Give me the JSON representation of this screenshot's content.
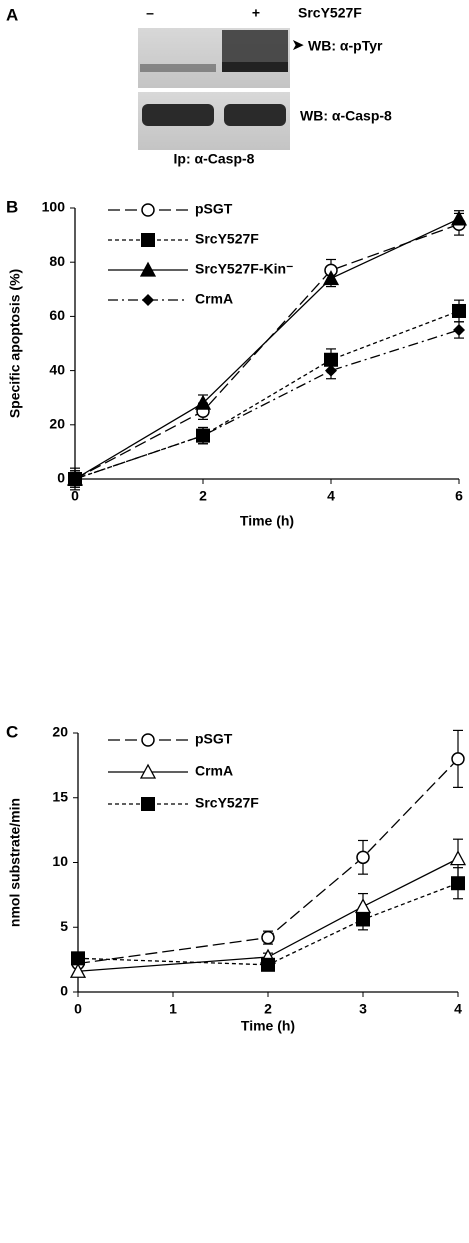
{
  "blot": {
    "panel_label": "A",
    "lane_labels": [
      "–",
      "+"
    ],
    "condition": "SrcY527F",
    "band_labels": [
      "WB: α-pTyr",
      "WB: α-Casp-8"
    ],
    "arrow": "➤",
    "ip_label": "Ip: α-Casp-8"
  },
  "chart_data": [
    {
      "type": "line",
      "panel_label": "B",
      "x_label": "Time (h)",
      "y_label": "Specific apoptosis (%)",
      "x": [
        0,
        2,
        4,
        6
      ],
      "xlim": [
        0,
        6
      ],
      "xticks": [
        0,
        2,
        4,
        6
      ],
      "ylim": [
        0,
        100
      ],
      "yticks": [
        0,
        20,
        40,
        60,
        80,
        100
      ],
      "grid": false,
      "legend": "top-left",
      "series": [
        {
          "name": "pSGT",
          "color": "#000000",
          "marker": "circle-open",
          "dash": "long",
          "values": [
            0,
            25,
            77,
            94
          ],
          "errors": [
            3,
            3,
            4,
            4
          ]
        },
        {
          "name": "SrcY527F",
          "color": "#000000",
          "marker": "square",
          "dash": "short",
          "values": [
            0,
            16,
            44,
            62
          ],
          "errors": [
            3,
            3,
            4,
            4
          ]
        },
        {
          "name": "SrcY527F-Kin⁻",
          "color": "#000000",
          "marker": "triangle",
          "dash": "solid",
          "values": [
            0,
            28,
            74,
            96
          ],
          "errors": [
            3,
            3,
            3,
            3
          ]
        },
        {
          "name": "CrmA",
          "color": "#000000",
          "marker": "diamond",
          "dash": "dash-dot",
          "values": [
            0,
            16,
            40,
            55
          ],
          "errors": [
            4,
            3,
            3,
            3
          ]
        }
      ]
    },
    {
      "type": "line",
      "panel_label": "C",
      "x_label": "Time (h)",
      "y_label": "nmol substrate/min",
      "x": [
        0,
        2,
        3,
        4
      ],
      "xlim": [
        0,
        4
      ],
      "xticks": [
        0,
        1,
        2,
        3,
        4
      ],
      "ylim": [
        0,
        20
      ],
      "yticks": [
        0,
        5,
        10,
        15,
        20
      ],
      "grid": false,
      "legend": "top-left",
      "series": [
        {
          "name": "pSGT",
          "color": "#000000",
          "marker": "circle-open",
          "dash": "long",
          "values": [
            2.2,
            4.2,
            10.4,
            18.0
          ],
          "errors": [
            0.3,
            0.5,
            1.3,
            2.2
          ]
        },
        {
          "name": "CrmA",
          "color": "#000000",
          "marker": "triangle-open",
          "dash": "solid",
          "values": [
            1.6,
            2.7,
            6.6,
            10.3
          ],
          "errors": [
            0.3,
            0.3,
            1.0,
            1.5
          ]
        },
        {
          "name": "SrcY527F",
          "color": "#000000",
          "marker": "square",
          "dash": "short",
          "values": [
            2.6,
            2.1,
            5.6,
            8.4
          ],
          "errors": [
            0.3,
            0.3,
            0.8,
            1.2
          ]
        }
      ]
    }
  ]
}
